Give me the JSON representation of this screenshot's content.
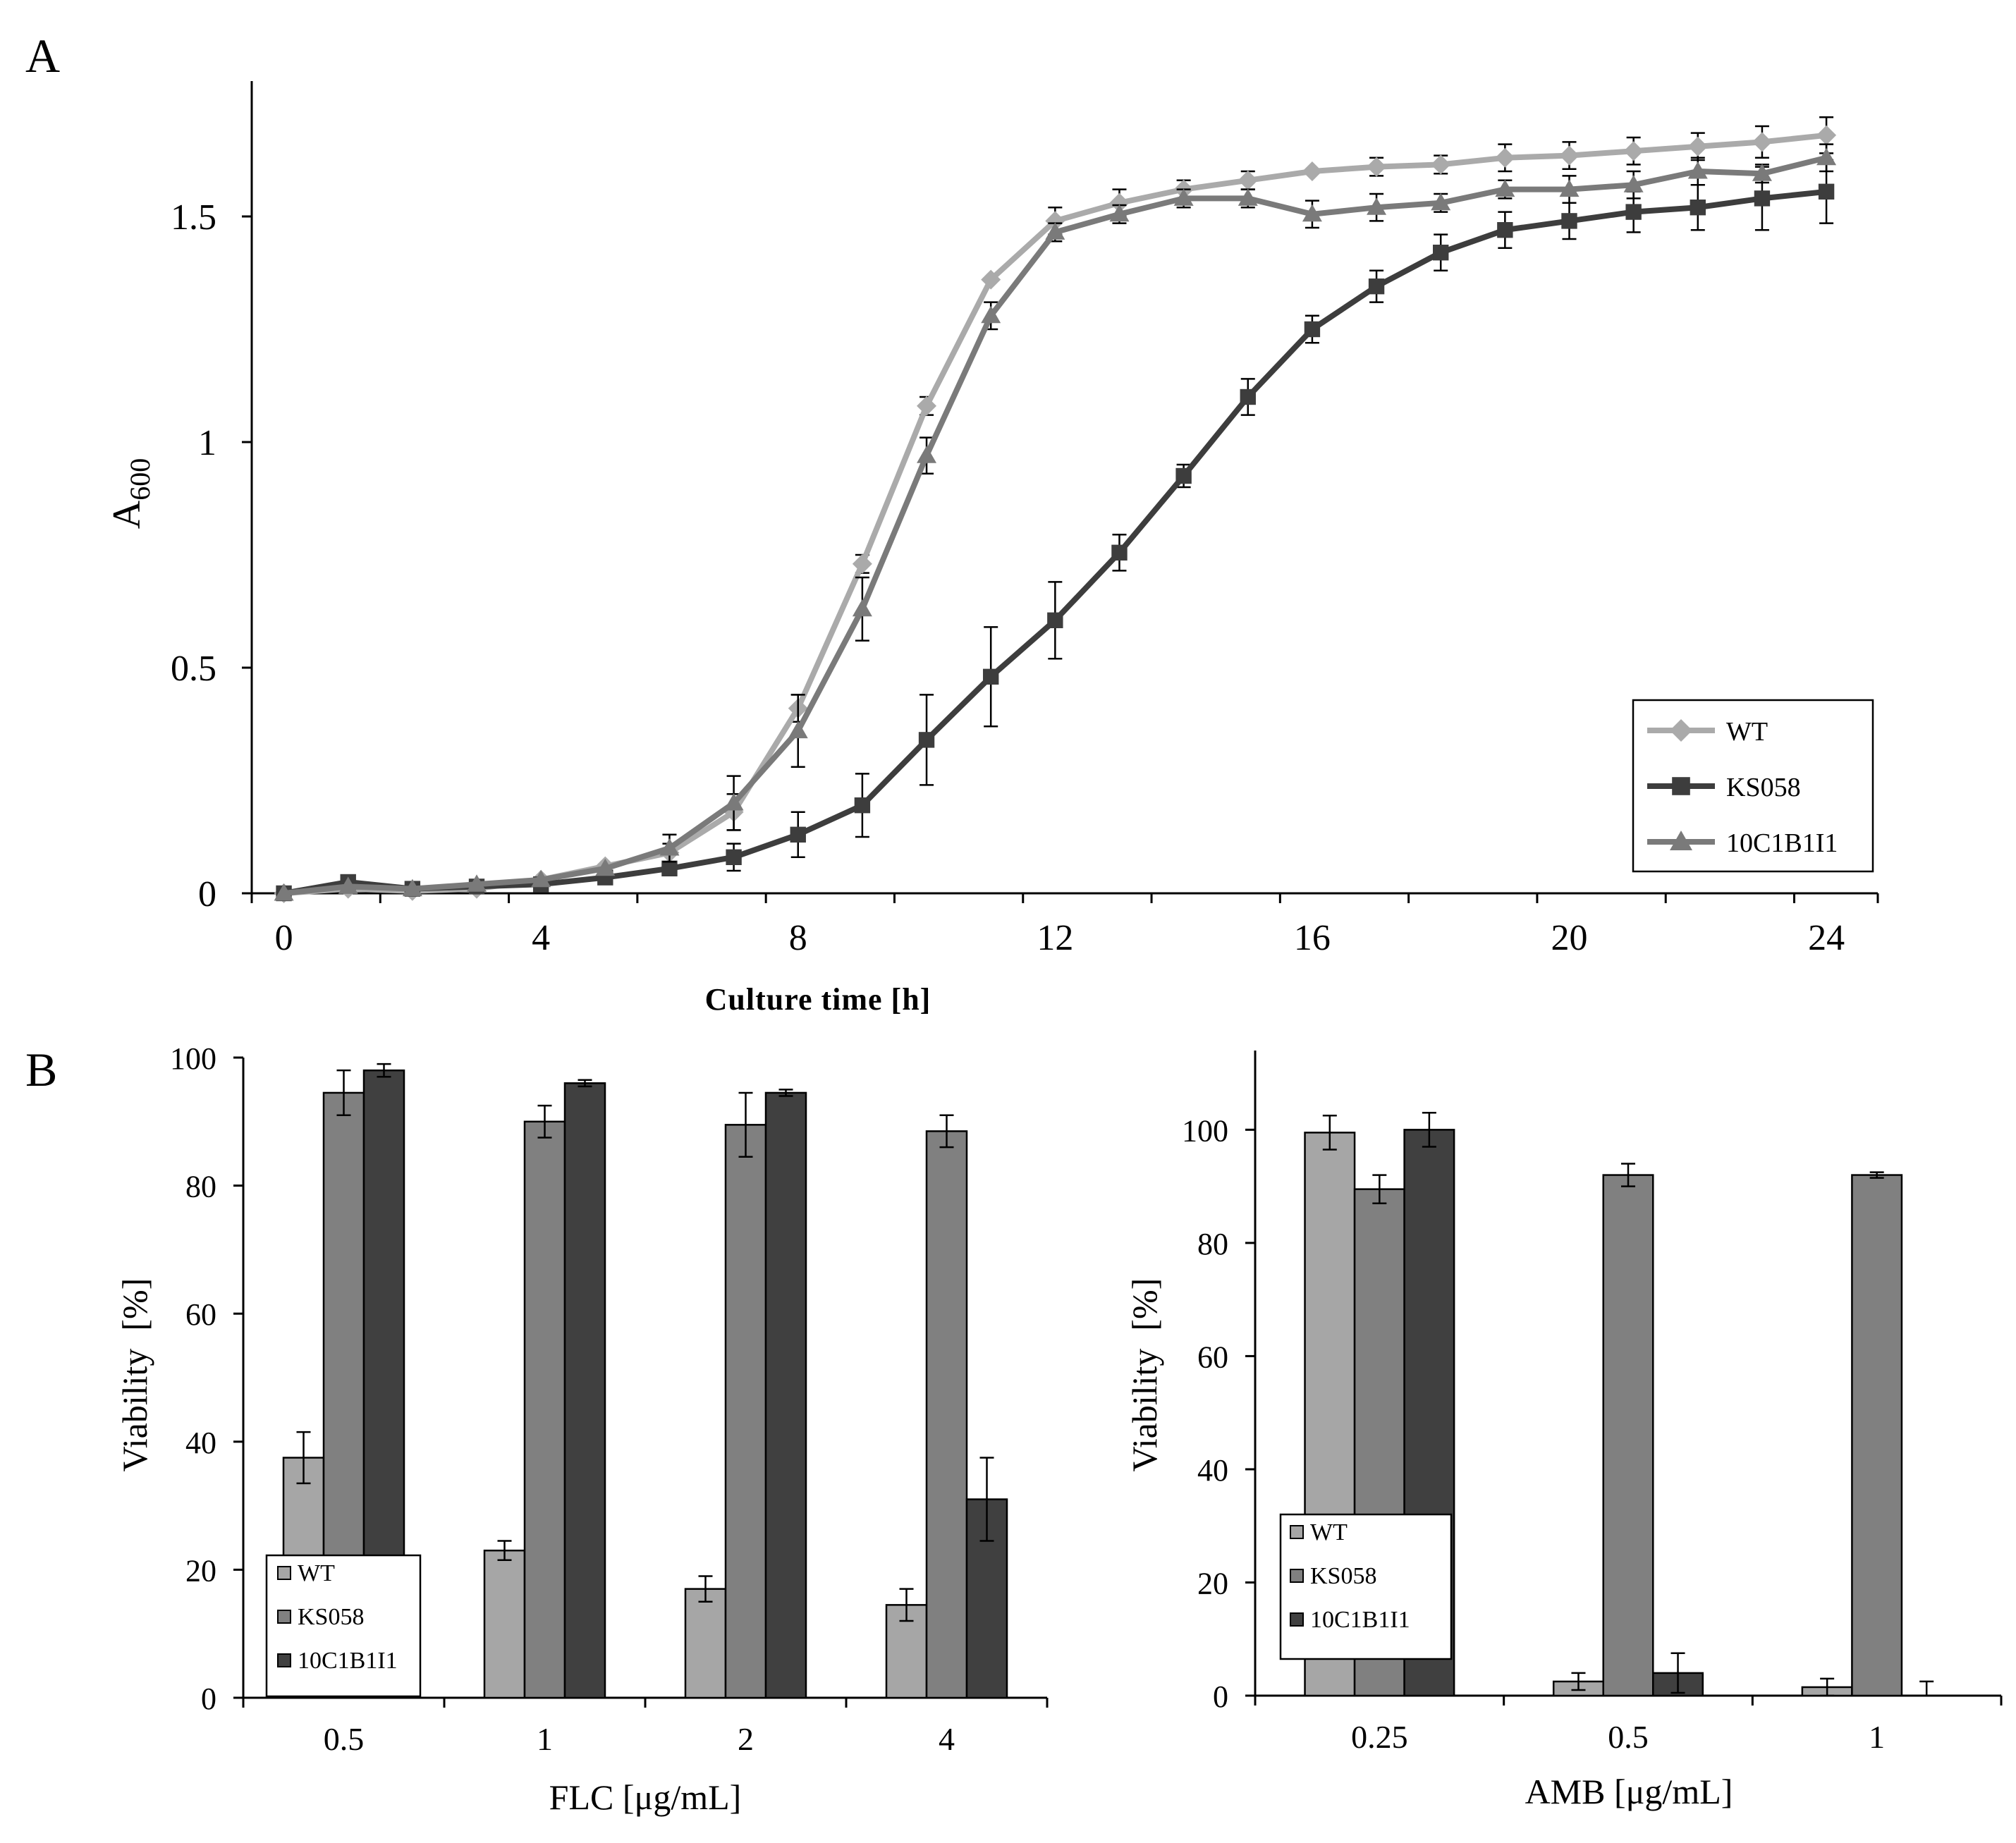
{
  "panel_labels": {
    "a": "A",
    "b": "B"
  },
  "chart_data": [
    {
      "id": "A",
      "type": "line",
      "title": "",
      "xlabel": "Culture time [h]",
      "ylabel_main": "A",
      "ylabel_sub": "600",
      "xlim": [
        -0.5,
        24.8
      ],
      "ylim": [
        0,
        1.8
      ],
      "xticks": [
        0,
        4,
        8,
        12,
        16,
        20,
        24
      ],
      "xtick_labels": [
        "0",
        "4",
        "8",
        "12",
        "16",
        "20",
        "24"
      ],
      "yticks": [
        0,
        0.5,
        1,
        1.5
      ],
      "ytick_labels": [
        "0",
        "0.5",
        "1",
        "1.5"
      ],
      "grid": false,
      "legend_position": "bottom-right",
      "x": [
        0,
        1,
        2,
        3,
        4,
        5,
        6,
        7,
        8,
        9,
        10,
        11,
        12,
        13,
        14,
        15,
        16,
        17,
        18,
        19,
        20,
        21,
        22,
        23,
        24
      ],
      "series": [
        {
          "name": "WT",
          "color": "#aaaaaa",
          "marker": "diamond",
          "values": [
            0.0,
            0.01,
            0.005,
            0.01,
            0.03,
            0.06,
            0.09,
            0.18,
            0.41,
            0.73,
            1.08,
            1.36,
            1.49,
            1.53,
            1.56,
            1.58,
            1.6,
            1.61,
            1.615,
            1.63,
            1.635,
            1.645,
            1.655,
            1.665,
            1.68
          ],
          "errors": [
            0.005,
            0.005,
            0.005,
            0.005,
            0.005,
            0.01,
            0.02,
            0.04,
            0.03,
            0.02,
            0.02,
            0.01,
            0.03,
            0.03,
            0.02,
            0.02,
            0.01,
            0.02,
            0.02,
            0.03,
            0.03,
            0.03,
            0.03,
            0.035,
            0.04
          ]
        },
        {
          "name": "KS058",
          "color": "#3d3d3d",
          "marker": "square",
          "values": [
            0.0,
            0.025,
            0.01,
            0.015,
            0.02,
            0.035,
            0.055,
            0.08,
            0.13,
            0.195,
            0.34,
            0.48,
            0.605,
            0.755,
            0.925,
            1.1,
            1.25,
            1.345,
            1.42,
            1.47,
            1.49,
            1.51,
            1.52,
            1.54,
            1.555
          ],
          "errors": [
            0.005,
            0.005,
            0.005,
            0.005,
            0.005,
            0.01,
            0.015,
            0.03,
            0.05,
            0.07,
            0.1,
            0.11,
            0.085,
            0.04,
            0.025,
            0.04,
            0.03,
            0.035,
            0.04,
            0.04,
            0.04,
            0.045,
            0.05,
            0.07,
            0.07
          ]
        },
        {
          "name": "10C1B1I1",
          "color": "#7a7a7a",
          "marker": "triangle",
          "values": [
            0.0,
            0.015,
            0.01,
            0.02,
            0.03,
            0.055,
            0.1,
            0.2,
            0.36,
            0.63,
            0.97,
            1.28,
            1.465,
            1.505,
            1.54,
            1.54,
            1.505,
            1.52,
            1.53,
            1.56,
            1.56,
            1.57,
            1.6,
            1.595,
            1.63
          ],
          "errors": [
            0.005,
            0.005,
            0.005,
            0.005,
            0.005,
            0.01,
            0.03,
            0.06,
            0.08,
            0.07,
            0.04,
            0.03,
            0.02,
            0.02,
            0.02,
            0.02,
            0.03,
            0.03,
            0.02,
            0.02,
            0.03,
            0.03,
            0.03,
            0.02,
            0.03
          ]
        }
      ]
    },
    {
      "id": "B1",
      "type": "bar",
      "title": "",
      "xlabel": "FLC [μg/mL]",
      "ylabel": "Viability  [%]",
      "ylim": [
        0,
        100
      ],
      "yticks": [
        0,
        20,
        40,
        60,
        80,
        100
      ],
      "ytick_labels": [
        "0",
        "20",
        "40",
        "60",
        "80",
        "100"
      ],
      "categories": [
        "0.5",
        "1",
        "2",
        "4"
      ],
      "legend_position": "bottom-left",
      "series": [
        {
          "name": "WT",
          "color": "#a6a6a6",
          "values": [
            37.5,
            23,
            17,
            14.5
          ],
          "errors": [
            4,
            1.5,
            2,
            2.5
          ]
        },
        {
          "name": "KS058",
          "color": "#808080",
          "values": [
            94.5,
            90,
            89.5,
            88.5
          ],
          "errors": [
            3.5,
            2.5,
            5,
            2.5
          ]
        },
        {
          "name": "10C1B1I1",
          "color": "#404040",
          "values": [
            98,
            96,
            94.5,
            31
          ],
          "errors": [
            1,
            0.5,
            0.5,
            6.5
          ]
        }
      ]
    },
    {
      "id": "B2",
      "type": "bar",
      "title": "",
      "xlabel": "AMB [μg/mL]",
      "ylabel": "Viability  [%]",
      "ylim": [
        0,
        114
      ],
      "yticks": [
        0,
        20,
        40,
        60,
        80,
        100
      ],
      "ytick_labels": [
        "0",
        "20",
        "40",
        "60",
        "80",
        "100"
      ],
      "categories": [
        "0.25",
        "0.5",
        "1"
      ],
      "legend_position": "bottom-left",
      "series": [
        {
          "name": "WT",
          "color": "#a6a6a6",
          "values": [
            99.5,
            2.5,
            1.5
          ],
          "errors": [
            3,
            1.5,
            1.5
          ]
        },
        {
          "name": "KS058",
          "color": "#808080",
          "values": [
            89.5,
            92,
            92
          ],
          "errors": [
            2.5,
            2,
            0.5
          ]
        },
        {
          "name": "10C1B1I1",
          "color": "#404040",
          "values": [
            100,
            4,
            0
          ],
          "errors": [
            3,
            3.5,
            2.5
          ]
        }
      ]
    }
  ]
}
